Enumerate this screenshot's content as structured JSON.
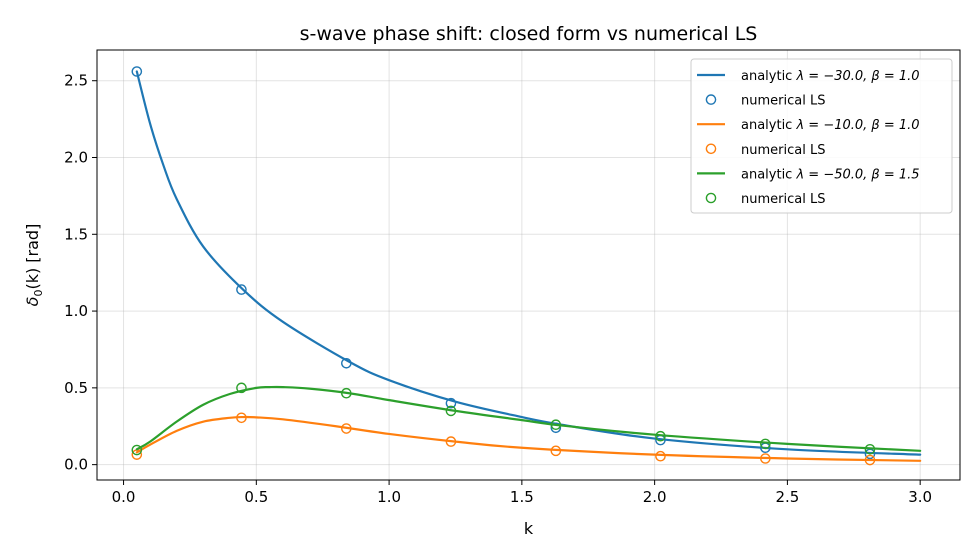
{
  "chart_data": {
    "type": "line",
    "title": "s-wave phase shift: closed form vs numerical LS",
    "xlabel": "k",
    "ylabel_main": "δ",
    "ylabel_sub": "0",
    "ylabel_rest": "(k) [rad]",
    "xlim": [
      -0.1,
      3.15
    ],
    "ylim": [
      -0.1,
      2.7
    ],
    "x_ticks": [
      0.0,
      0.5,
      1.0,
      1.5,
      2.0,
      2.5,
      3.0
    ],
    "x_tick_labels": [
      "0.0",
      "0.5",
      "1.0",
      "1.5",
      "2.0",
      "2.5",
      "3.0"
    ],
    "y_ticks": [
      0.0,
      0.5,
      1.0,
      1.5,
      2.0,
      2.5
    ],
    "y_tick_labels": [
      "0.0",
      "0.5",
      "1.0",
      "1.5",
      "2.0",
      "2.5"
    ],
    "grid": true,
    "legend_position": "top-right",
    "curve_x_range": [
      0.05,
      3.0
    ],
    "series": [
      {
        "color": "#1f77b4",
        "line_label_prefix": "analytic ",
        "line_label_math": "λ = −30.0, β = 1.0",
        "marker_label": "numerical LS",
        "curve": {
          "x": [
            0.05,
            0.1,
            0.15,
            0.2,
            0.3,
            0.45,
            0.6,
            0.85,
            1.0,
            1.25,
            1.5,
            1.65,
            2.0,
            2.5,
            3.0
          ],
          "y": [
            2.56,
            2.22,
            1.95,
            1.73,
            1.42,
            1.14,
            0.93,
            0.67,
            0.55,
            0.41,
            0.31,
            0.26,
            0.17,
            0.1,
            0.065
          ]
        },
        "points": {
          "x": [
            0.05,
            0.444,
            0.839,
            1.233,
            1.628,
            2.022,
            2.417,
            2.811
          ],
          "y": [
            2.56,
            1.14,
            0.66,
            0.4,
            0.24,
            0.16,
            0.11,
            0.07
          ]
        }
      },
      {
        "color": "#ff7f0e",
        "line_label_prefix": "analytic ",
        "line_label_math": "λ = −10.0, β = 1.0",
        "marker_label": "numerical LS",
        "curve": {
          "x": [
            0.05,
            0.1,
            0.2,
            0.3,
            0.4,
            0.45,
            0.5,
            0.6,
            0.8,
            1.0,
            1.25,
            1.5,
            2.0,
            2.5,
            3.0
          ],
          "y": [
            0.08,
            0.13,
            0.22,
            0.28,
            0.305,
            0.31,
            0.308,
            0.295,
            0.25,
            0.2,
            0.15,
            0.11,
            0.065,
            0.04,
            0.025
          ]
        },
        "points": {
          "x": [
            0.05,
            0.444,
            0.839,
            1.233,
            1.628,
            2.022,
            2.417,
            2.811
          ],
          "y": [
            0.065,
            0.305,
            0.235,
            0.15,
            0.09,
            0.055,
            0.04,
            0.03
          ]
        }
      },
      {
        "color": "#2ca02c",
        "line_label_prefix": "analytic ",
        "line_label_math": "λ = −50.0, β = 1.5",
        "marker_label": "numerical LS",
        "curve": {
          "x": [
            0.05,
            0.1,
            0.2,
            0.3,
            0.4,
            0.5,
            0.55,
            0.6,
            0.7,
            0.85,
            1.0,
            1.25,
            1.5,
            1.65,
            2.0,
            2.5,
            3.0
          ],
          "y": [
            0.1,
            0.15,
            0.28,
            0.39,
            0.46,
            0.5,
            0.505,
            0.505,
            0.495,
            0.465,
            0.42,
            0.35,
            0.29,
            0.255,
            0.195,
            0.135,
            0.09
          ]
        },
        "points": {
          "x": [
            0.05,
            0.444,
            0.839,
            1.233,
            1.628,
            2.022,
            2.417,
            2.811
          ],
          "y": [
            0.095,
            0.5,
            0.465,
            0.35,
            0.26,
            0.185,
            0.135,
            0.1
          ]
        }
      }
    ]
  }
}
